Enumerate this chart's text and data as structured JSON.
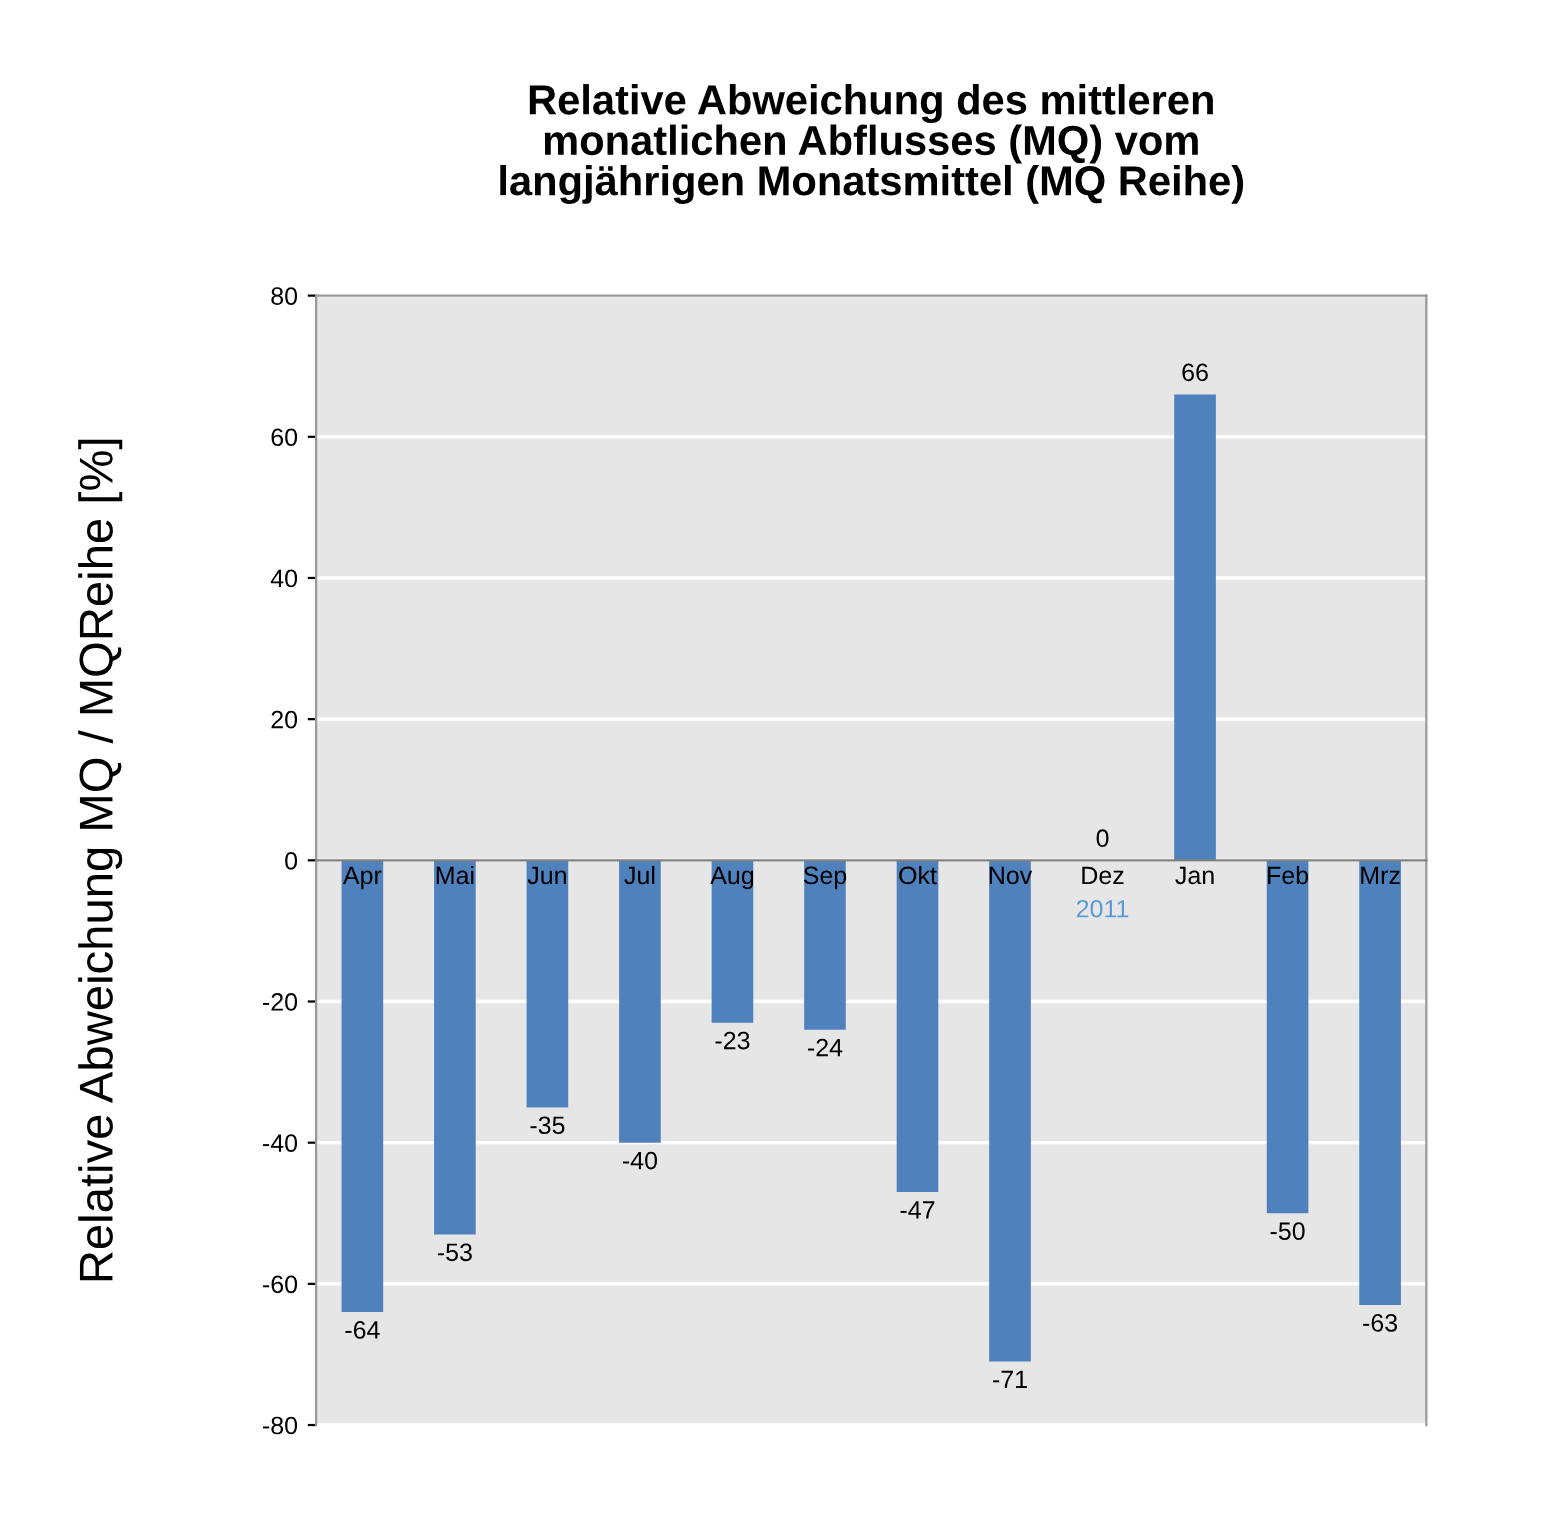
{
  "chart_data": {
    "type": "bar",
    "title": "Relative Abweichung des mittleren\nmonatlichen Abflusses (MQ) vom\nlangjährigen Monatsmittel (MQ Reihe)",
    "ylabel": "Relative Abweichung MQ / MQReihe [%]",
    "categories": [
      "Apr",
      "Mai",
      "Jun",
      "Jul",
      "Aug",
      "Sep",
      "Okt",
      "Nov",
      "Dez",
      "Jan",
      "Feb",
      "Mrz"
    ],
    "values": [
      -64,
      -53,
      -35,
      -40,
      -23,
      -24,
      -47,
      -71,
      0,
      66,
      -50,
      -63
    ],
    "color": "#4f81bd",
    "ylim": [
      -80,
      80
    ],
    "yticks": [
      -80,
      -60,
      -40,
      -20,
      0,
      20,
      40,
      60,
      80
    ],
    "grid": "y",
    "data_labels": true,
    "annotations": [
      "2011"
    ]
  }
}
